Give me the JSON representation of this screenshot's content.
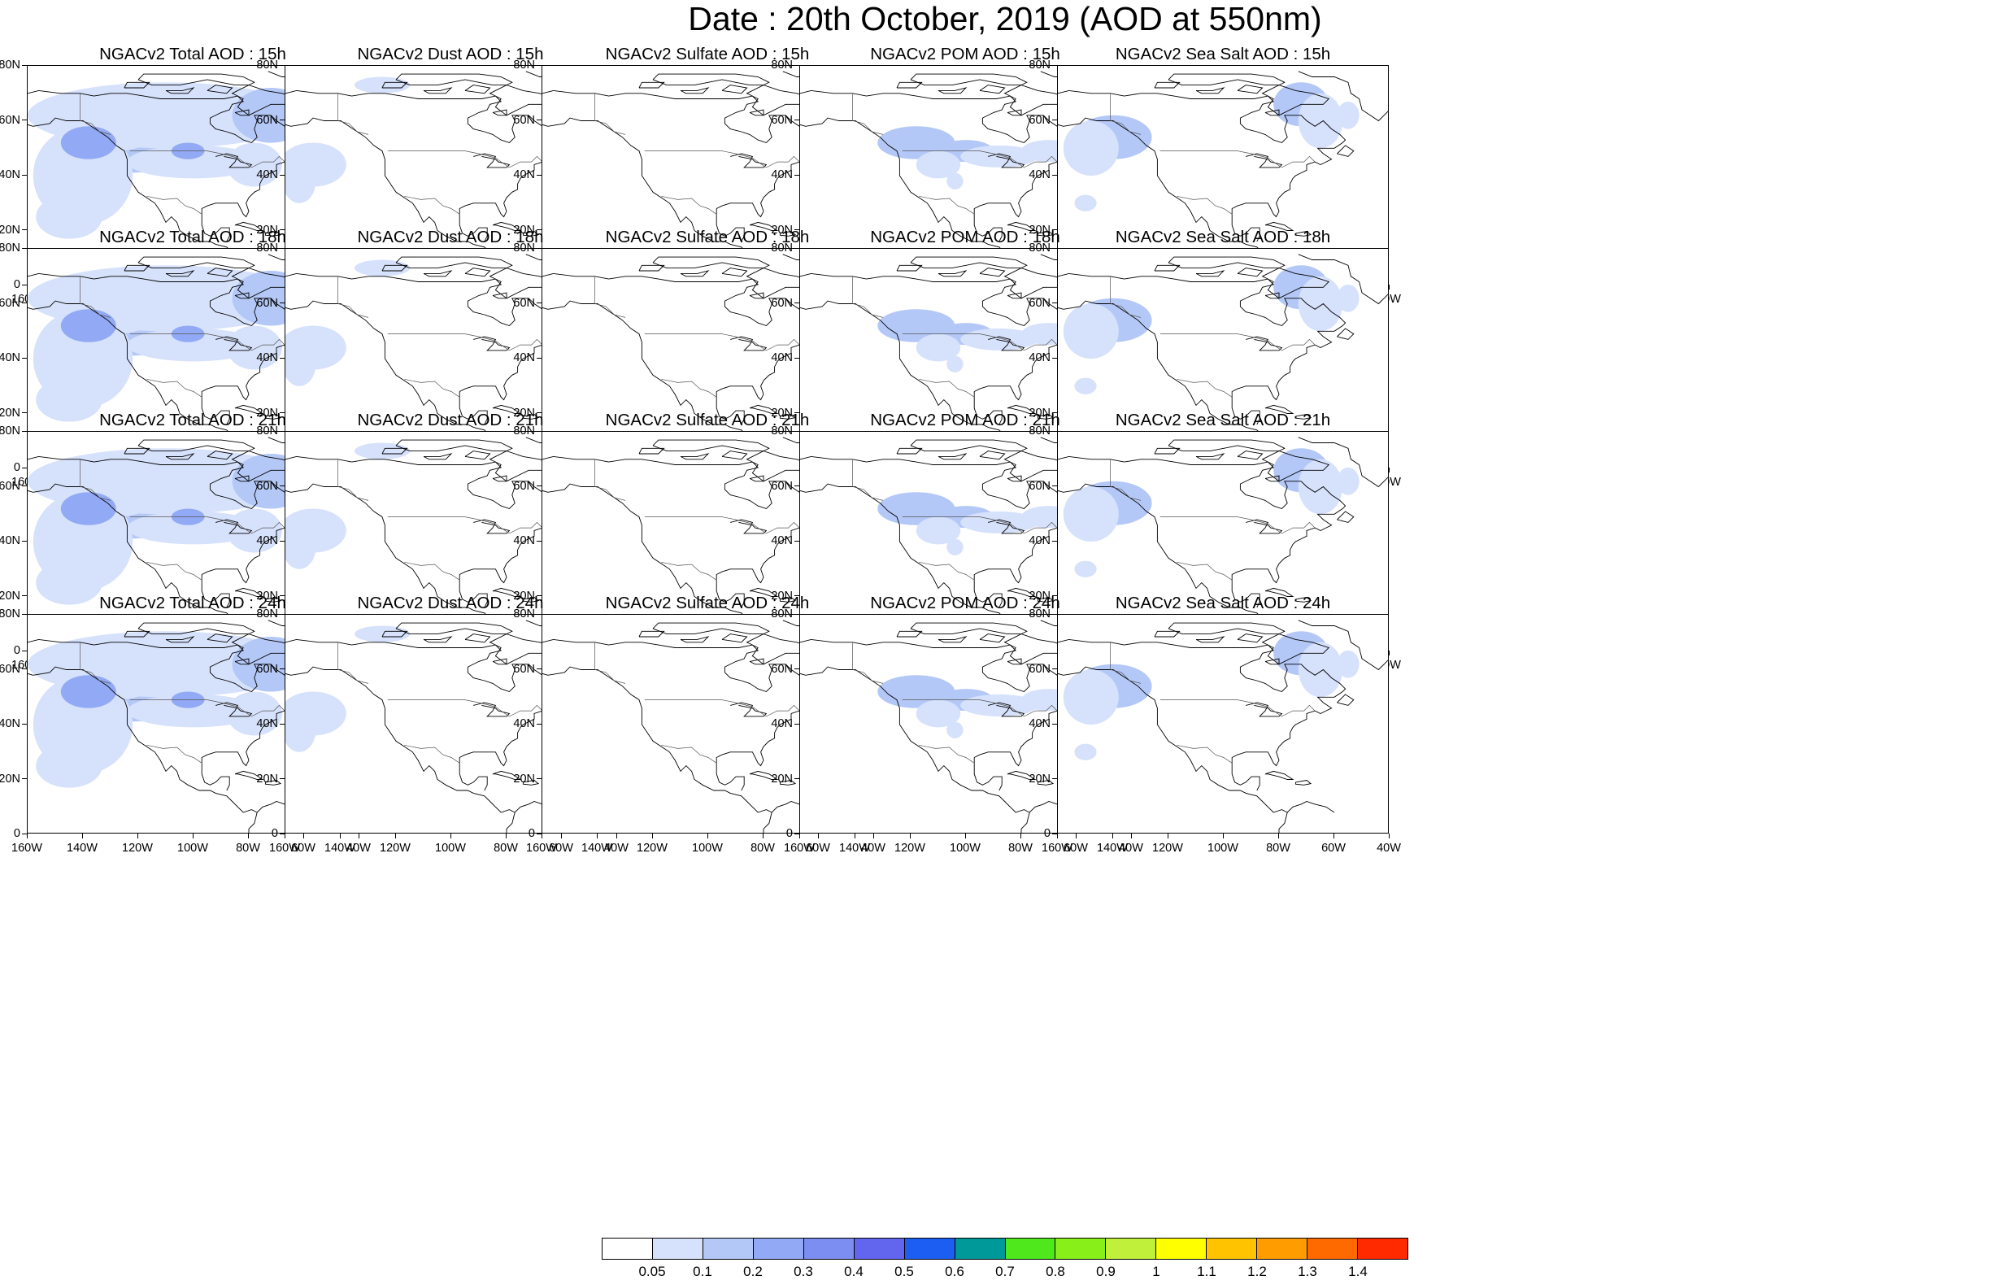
{
  "figure": {
    "title": "Date : 20th October, 2019 (AOD at 550nm)"
  },
  "panels": [
    {
      "row": 0,
      "col": 0,
      "title": "NGACv2 Total AOD : 15h",
      "species": "total",
      "hour": "15h"
    },
    {
      "row": 0,
      "col": 1,
      "title": "NGACv2 Dust AOD : 15h",
      "species": "dust",
      "hour": "15h"
    },
    {
      "row": 0,
      "col": 2,
      "title": "NGACv2 Sulfate AOD : 15h",
      "species": "sulfate",
      "hour": "15h"
    },
    {
      "row": 0,
      "col": 3,
      "title": "NGACv2 POM AOD : 15h",
      "species": "pom",
      "hour": "15h"
    },
    {
      "row": 0,
      "col": 4,
      "title": "NGACv2 Sea Salt AOD : 15h",
      "species": "seasalt",
      "hour": "15h"
    },
    {
      "row": 1,
      "col": 0,
      "title": "NGACv2 Total AOD : 18h",
      "species": "total",
      "hour": "18h"
    },
    {
      "row": 1,
      "col": 1,
      "title": "NGACv2 Dust AOD : 18h",
      "species": "dust",
      "hour": "18h"
    },
    {
      "row": 1,
      "col": 2,
      "title": "NGACv2 Sulfate AOD : 18h",
      "species": "sulfate",
      "hour": "18h"
    },
    {
      "row": 1,
      "col": 3,
      "title": "NGACv2 POM AOD : 18h",
      "species": "pom",
      "hour": "18h"
    },
    {
      "row": 1,
      "col": 4,
      "title": "NGACv2 Sea Salt AOD : 18h",
      "species": "seasalt",
      "hour": "18h"
    },
    {
      "row": 2,
      "col": 0,
      "title": "NGACv2 Total AOD : 21h",
      "species": "total",
      "hour": "21h"
    },
    {
      "row": 2,
      "col": 1,
      "title": "NGACv2 Dust AOD : 21h",
      "species": "dust",
      "hour": "21h"
    },
    {
      "row": 2,
      "col": 2,
      "title": "NGACv2 Sulfate AOD : 21h",
      "species": "sulfate",
      "hour": "21h"
    },
    {
      "row": 2,
      "col": 3,
      "title": "NGACv2 POM AOD : 21h",
      "species": "pom",
      "hour": "21h"
    },
    {
      "row": 2,
      "col": 4,
      "title": "NGACv2 Sea Salt AOD : 21h",
      "species": "seasalt",
      "hour": "21h"
    },
    {
      "row": 3,
      "col": 0,
      "title": "NGACv2 Total AOD : 24h",
      "species": "total",
      "hour": "24h"
    },
    {
      "row": 3,
      "col": 1,
      "title": "NGACv2 Dust AOD : 24h",
      "species": "dust",
      "hour": "24h"
    },
    {
      "row": 3,
      "col": 2,
      "title": "NGACv2 Sulfate AOD : 24h",
      "species": "sulfate",
      "hour": "24h"
    },
    {
      "row": 3,
      "col": 3,
      "title": "NGACv2 POM AOD : 24h",
      "species": "pom",
      "hour": "24h"
    },
    {
      "row": 3,
      "col": 4,
      "title": "NGACv2 Sea Salt  AOD : 24h",
      "species": "seasalt",
      "hour": "24h"
    }
  ],
  "axes": {
    "x_ticks": [
      "160W",
      "140W",
      "120W",
      "100W",
      "80W",
      "60W",
      "40W"
    ],
    "y_ticks": [
      "80N",
      "60N",
      "40N",
      "20N",
      "0"
    ],
    "lon_range": [
      -160,
      -40
    ],
    "lat_range": [
      0,
      80
    ]
  },
  "colorbar": {
    "labels": [
      "0.05",
      "0.1",
      "0.2",
      "0.3",
      "0.4",
      "0.5",
      "0.6",
      "0.7",
      "0.8",
      "0.9",
      "1",
      "1.1",
      "1.2",
      "1.3",
      "1.4"
    ],
    "colors": [
      "#ffffff",
      "#d6e1fb",
      "#b4c8f7",
      "#92aaf5",
      "#7c8ef2",
      "#6266ee",
      "#1d5ef2",
      "#009999",
      "#4ee81c",
      "#88ef18",
      "#c0f03a",
      "#ffff00",
      "#ffc300",
      "#ff9d00",
      "#ff6a00",
      "#ff2a00"
    ]
  },
  "shading": {
    "very_light": "#d6e1fb",
    "light": "#b4c8f7",
    "medium": "#92aaf5"
  }
}
